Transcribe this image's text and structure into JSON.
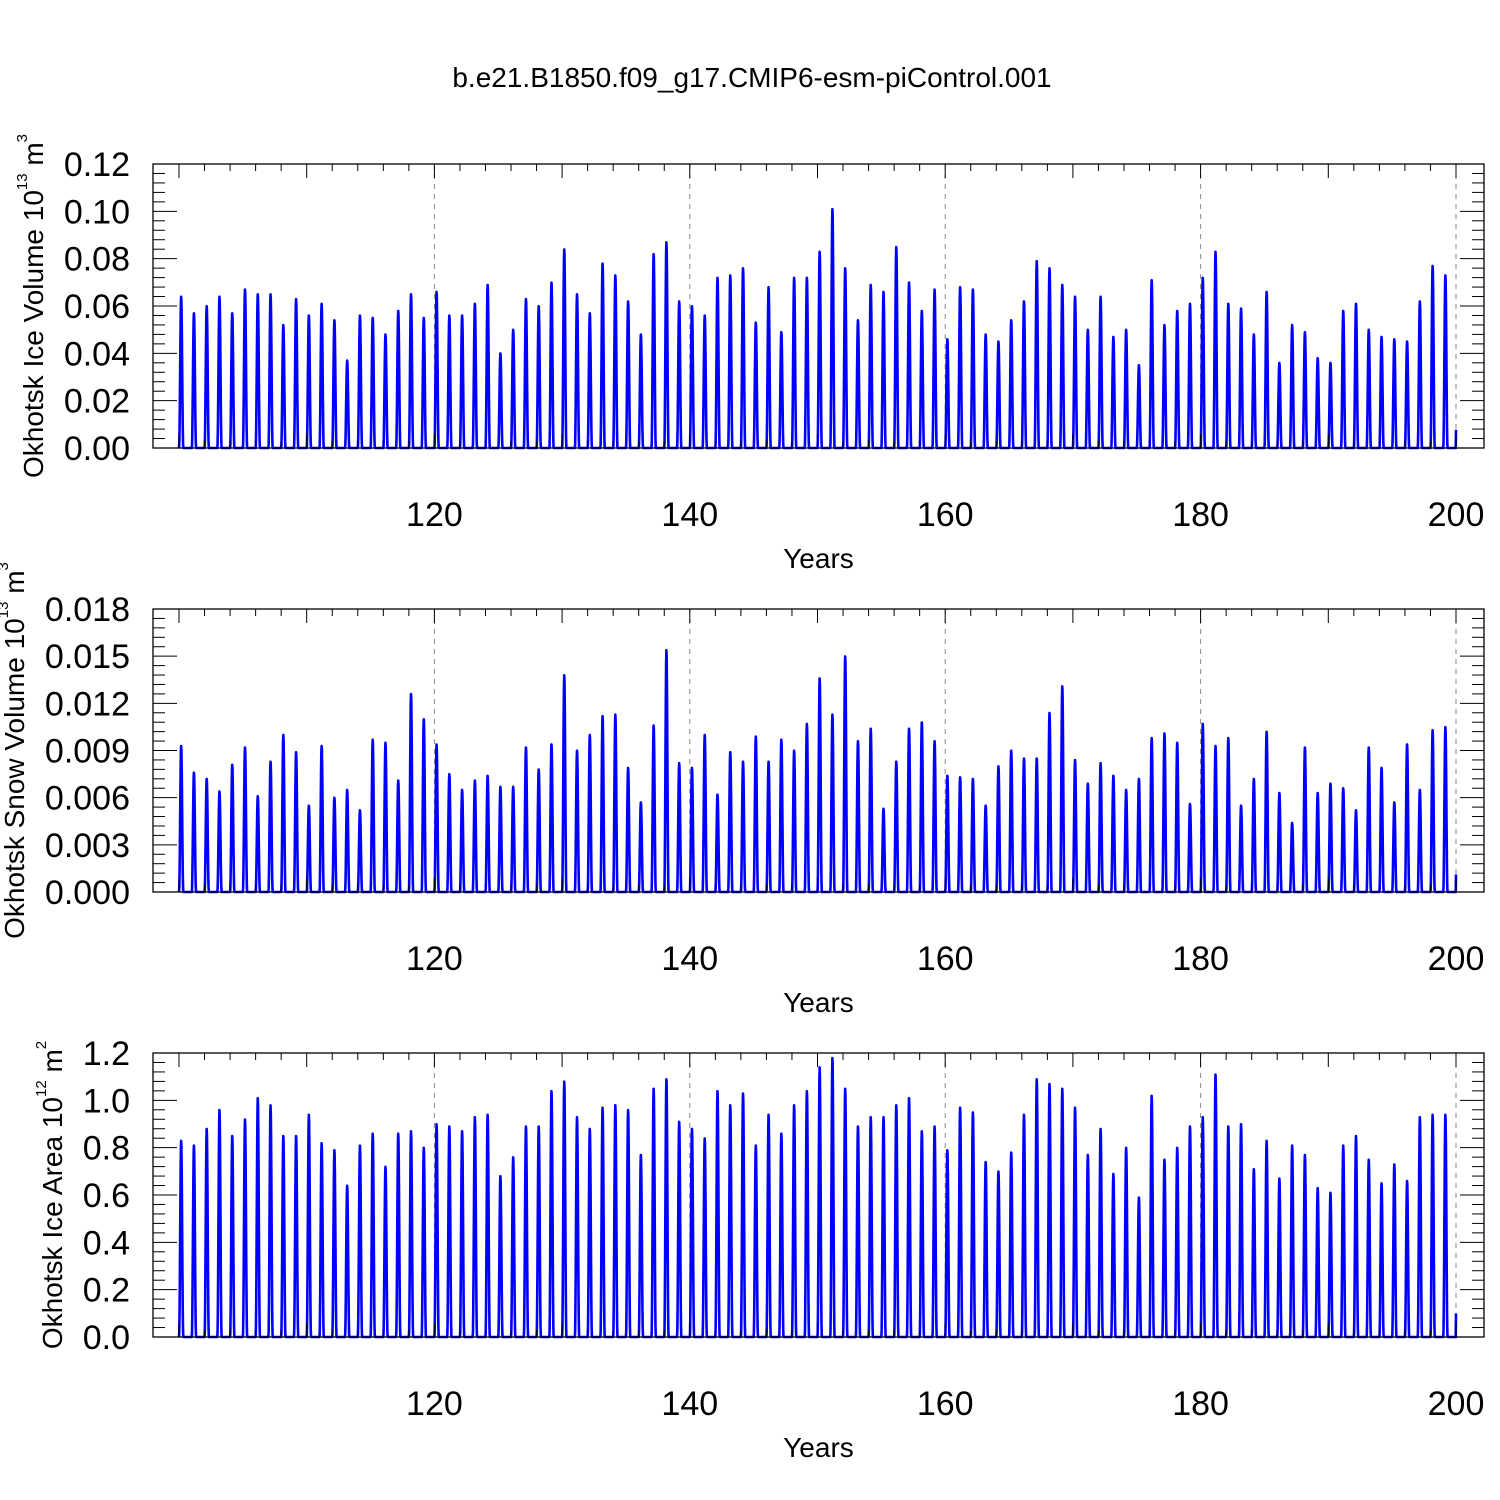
{
  "title": "b.e21.B1850.f09_g17.CMIP6-esm-piControl.001",
  "line_color": "#0000ff",
  "chart_data": [
    {
      "type": "line",
      "title": "",
      "xlabel": "Years",
      "ylabel_parts": [
        "Okhotsk Ice Volume 10",
        "13",
        " m",
        "3"
      ],
      "xlim": [
        100,
        200
      ],
      "ylim": [
        0,
        0.12
      ],
      "xticks": [
        "120",
        "140",
        "160",
        "180",
        "200"
      ],
      "yticks": [
        "0.00",
        "0.02",
        "0.04",
        "0.06",
        "0.08",
        "0.10",
        "0.12"
      ],
      "grid": "dashed vertical at major x ticks",
      "series": [
        {
          "x_start_year": 100,
          "annual_peaks": [
            0.064,
            0.057,
            0.06,
            0.064,
            0.057,
            0.067,
            0.065,
            0.065,
            0.052,
            0.063,
            0.056,
            0.061,
            0.054,
            0.037,
            0.056,
            0.055,
            0.048,
            0.058,
            0.065,
            0.055,
            0.066,
            0.056,
            0.056,
            0.061,
            0.069,
            0.04,
            0.05,
            0.063,
            0.06,
            0.07,
            0.084,
            0.065,
            0.057,
            0.078,
            0.073,
            0.062,
            0.048,
            0.082,
            0.087,
            0.062,
            0.06,
            0.056,
            0.072,
            0.073,
            0.076,
            0.053,
            0.068,
            0.049,
            0.072,
            0.072,
            0.083,
            0.101,
            0.076,
            0.054,
            0.069,
            0.066,
            0.085,
            0.07,
            0.058,
            0.067,
            0.046,
            0.068,
            0.067,
            0.048,
            0.045,
            0.054,
            0.062,
            0.079,
            0.076,
            0.069,
            0.064,
            0.05,
            0.064,
            0.047,
            0.05,
            0.035,
            0.071,
            0.052,
            0.058,
            0.061,
            0.072,
            0.083,
            0.061,
            0.059,
            0.048,
            0.066,
            0.036,
            0.052,
            0.049,
            0.038,
            0.036,
            0.058,
            0.061,
            0.05,
            0.047,
            0.046,
            0.045,
            0.062,
            0.077,
            0.073
          ]
        }
      ]
    },
    {
      "type": "line",
      "title": "",
      "xlabel": "Years",
      "ylabel_parts": [
        "Okhotsk Snow Volume 10",
        "13",
        " m",
        "3"
      ],
      "xlim": [
        100,
        200
      ],
      "ylim": [
        0,
        0.018
      ],
      "xticks": [
        "120",
        "140",
        "160",
        "180",
        "200"
      ],
      "yticks": [
        "0.000",
        "0.003",
        "0.006",
        "0.009",
        "0.012",
        "0.015",
        "0.018"
      ],
      "grid": "dashed vertical at major x ticks",
      "series": [
        {
          "x_start_year": 100,
          "annual_peaks": [
            0.0093,
            0.0076,
            0.0072,
            0.0064,
            0.0081,
            0.0092,
            0.0061,
            0.0083,
            0.01,
            0.0089,
            0.0055,
            0.0093,
            0.006,
            0.0065,
            0.0052,
            0.0097,
            0.0095,
            0.0071,
            0.0126,
            0.011,
            0.0094,
            0.0075,
            0.0065,
            0.0071,
            0.0074,
            0.0067,
            0.0067,
            0.0092,
            0.0078,
            0.0094,
            0.0138,
            0.009,
            0.01,
            0.0112,
            0.0113,
            0.0079,
            0.0057,
            0.0106,
            0.0154,
            0.0082,
            0.0079,
            0.01,
            0.0062,
            0.0089,
            0.0083,
            0.0099,
            0.0083,
            0.0097,
            0.009,
            0.0107,
            0.0136,
            0.0113,
            0.015,
            0.0096,
            0.0104,
            0.0053,
            0.0083,
            0.0104,
            0.0108,
            0.0096,
            0.0074,
            0.0073,
            0.0072,
            0.0055,
            0.008,
            0.009,
            0.0085,
            0.0085,
            0.0114,
            0.0131,
            0.0084,
            0.0069,
            0.0082,
            0.0074,
            0.0065,
            0.0072,
            0.0098,
            0.0101,
            0.0095,
            0.0056,
            0.0107,
            0.0093,
            0.0098,
            0.0055,
            0.0072,
            0.0102,
            0.0063,
            0.0044,
            0.0092,
            0.0063,
            0.0069,
            0.0066,
            0.0052,
            0.0092,
            0.0079,
            0.0057,
            0.0094,
            0.0065,
            0.0103,
            0.0105
          ]
        }
      ]
    },
    {
      "type": "line",
      "title": "",
      "xlabel": "Years",
      "ylabel_parts": [
        "Okhotsk Ice Area 10",
        "12",
        " m",
        "2"
      ],
      "xlim": [
        100,
        200
      ],
      "ylim": [
        0,
        1.2
      ],
      "xticks": [
        "120",
        "140",
        "160",
        "180",
        "200"
      ],
      "yticks": [
        "0.0",
        "0.2",
        "0.4",
        "0.6",
        "0.8",
        "1.0",
        "1.2"
      ],
      "grid": "dashed vertical at major x ticks",
      "series": [
        {
          "x_start_year": 100,
          "annual_peaks": [
            0.83,
            0.81,
            0.88,
            0.96,
            0.85,
            0.92,
            1.01,
            0.98,
            0.85,
            0.85,
            0.94,
            0.82,
            0.79,
            0.64,
            0.81,
            0.86,
            0.72,
            0.86,
            0.87,
            0.8,
            0.9,
            0.89,
            0.87,
            0.93,
            0.94,
            0.68,
            0.76,
            0.89,
            0.89,
            1.04,
            1.08,
            0.93,
            0.88,
            0.97,
            0.98,
            0.96,
            0.77,
            1.05,
            1.09,
            0.91,
            0.88,
            0.84,
            1.04,
            0.98,
            1.03,
            0.81,
            0.94,
            0.86,
            0.98,
            1.04,
            1.14,
            1.18,
            1.05,
            0.89,
            0.93,
            0.93,
            0.98,
            1.01,
            0.87,
            0.89,
            0.79,
            0.97,
            0.95,
            0.74,
            0.7,
            0.78,
            0.94,
            1.09,
            1.07,
            1.05,
            0.97,
            0.77,
            0.88,
            0.69,
            0.8,
            0.59,
            1.02,
            0.75,
            0.8,
            0.89,
            0.93,
            1.11,
            0.89,
            0.9,
            0.71,
            0.83,
            0.67,
            0.81,
            0.77,
            0.63,
            0.61,
            0.81,
            0.85,
            0.75,
            0.65,
            0.73,
            0.66,
            0.93,
            0.94,
            0.94
          ]
        }
      ]
    }
  ]
}
